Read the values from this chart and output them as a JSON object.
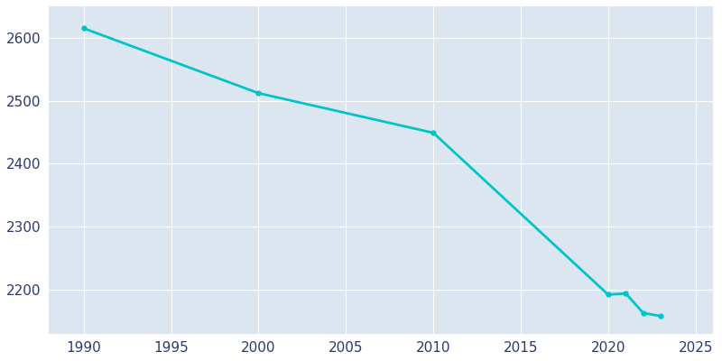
{
  "years": [
    1990,
    2000,
    2010,
    2020,
    2021,
    2022,
    2023
  ],
  "population": [
    2615,
    2512,
    2449,
    2192,
    2194,
    2163,
    2158
  ],
  "line_color": "#00c5c8",
  "bg_color": "#ffffff",
  "plot_bg_color": "#dce6f0",
  "tick_color": "#2d3a6b",
  "line_width": 2.0,
  "marker": "o",
  "marker_size": 3.5,
  "xlim": [
    1988,
    2026
  ],
  "ylim": [
    2130,
    2650
  ],
  "xticks": [
    1990,
    1995,
    2000,
    2005,
    2010,
    2015,
    2020,
    2025
  ],
  "yticks": [
    2200,
    2300,
    2400,
    2500,
    2600
  ],
  "grid_color": "#ffffff",
  "grid_linewidth": 0.8
}
